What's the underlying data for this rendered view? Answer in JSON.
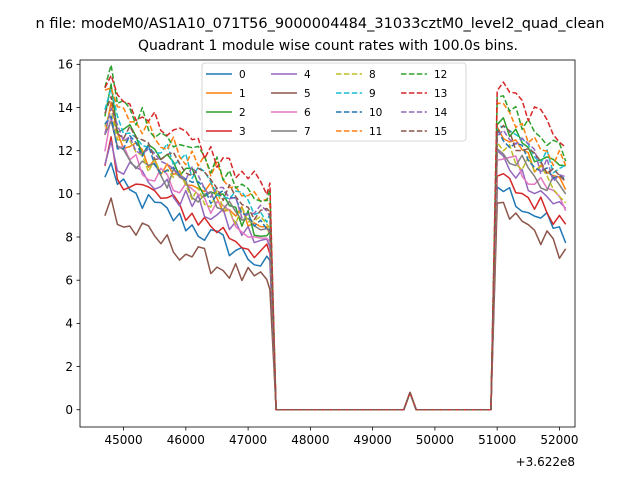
{
  "chart_data": {
    "type": "line",
    "suptitle": "n file: modeM0/AS1A10_071T56_9000004484_31033cztM0_level2_quad_clean",
    "title": "Quadrant 1 module wise count rates with 100.0s bins.",
    "xlabel": "",
    "ylabel": "",
    "x_offset_label": "+3.622e8",
    "xlim": [
      44300,
      52250
    ],
    "ylim": [
      -0.8,
      16.2
    ],
    "xticks": [
      45000,
      46000,
      47000,
      48000,
      49000,
      50000,
      51000,
      52000
    ],
    "yticks": [
      0,
      2,
      4,
      6,
      8,
      10,
      12,
      14,
      16
    ],
    "grid": false,
    "legend_position": "top-center",
    "segments": {
      "orbit1_x": [
        44700,
        44800,
        44900,
        45000,
        45100,
        45200,
        45300,
        45400,
        45500,
        45600,
        45700,
        45800,
        45900,
        46000,
        46100,
        46200,
        46300,
        46400,
        46500,
        46600,
        46700,
        46800,
        46900,
        47000,
        47100,
        47200,
        47300,
        47350
      ],
      "gap_x": [
        47450,
        47600,
        49500,
        49600,
        49700,
        50800
      ],
      "gap_y": [
        0,
        0,
        0,
        0.8,
        0,
        0
      ],
      "orbit2_x": [
        50900,
        51000,
        51100,
        51200,
        51300,
        51400,
        51500,
        51600,
        51700,
        51800,
        51900,
        52000,
        52100
      ]
    },
    "series": [
      {
        "name": "0",
        "color": "#1f77b4",
        "dash": "solid",
        "base1": 10.6,
        "end1": 6.5,
        "base2": 10.4,
        "end2": 8.0
      },
      {
        "name": "1",
        "color": "#ff7f0e",
        "dash": "solid",
        "base1": 12.8,
        "end1": 8.4,
        "base2": 12.8,
        "end2": 10.4
      },
      {
        "name": "2",
        "color": "#2ca02c",
        "dash": "solid",
        "base1": 13.6,
        "end1": 7.9,
        "base2": 13.4,
        "end2": 10.8
      },
      {
        "name": "3",
        "color": "#d62728",
        "dash": "solid",
        "base1": 11.2,
        "end1": 7.0,
        "base2": 10.8,
        "end2": 8.7
      },
      {
        "name": "4",
        "color": "#9467bd",
        "dash": "solid",
        "base1": 11.8,
        "end1": 7.5,
        "base2": 11.8,
        "end2": 9.2
      },
      {
        "name": "5",
        "color": "#8c564b",
        "dash": "solid",
        "base1": 8.9,
        "end1": 5.6,
        "base2": 9.4,
        "end2": 7.3
      },
      {
        "name": "6",
        "color": "#e377c2",
        "dash": "solid",
        "base1": 12.2,
        "end1": 7.8,
        "base2": 12.0,
        "end2": 9.6
      },
      {
        "name": "7",
        "color": "#7f7f7f",
        "dash": "solid",
        "base1": 12.4,
        "end1": 8.0,
        "base2": 12.3,
        "end2": 9.9
      },
      {
        "name": "8",
        "color": "#bcbd22",
        "dash": "dashed",
        "base1": 12.6,
        "end1": 8.1,
        "base2": 12.5,
        "end2": 10.0
      },
      {
        "name": "9",
        "color": "#17becf",
        "dash": "dashed",
        "base1": 13.8,
        "end1": 8.8,
        "base2": 13.6,
        "end2": 10.9
      },
      {
        "name": "10",
        "color": "#1f77b4",
        "dash": "dashed",
        "base1": 12.9,
        "end1": 8.4,
        "base2": 12.7,
        "end2": 10.2
      },
      {
        "name": "11",
        "color": "#ff7f0e",
        "dash": "dashed",
        "base1": 14.3,
        "end1": 9.3,
        "base2": 14.0,
        "end2": 11.3
      },
      {
        "name": "12",
        "color": "#2ca02c",
        "dash": "dashed",
        "base1": 14.6,
        "end1": 9.7,
        "base2": 14.4,
        "end2": 11.7
      },
      {
        "name": "13",
        "color": "#d62728",
        "dash": "dashed",
        "base1": 14.8,
        "end1": 10.1,
        "base2": 15.0,
        "end2": 12.5
      },
      {
        "name": "14",
        "color": "#9467bd",
        "dash": "dashed",
        "base1": 13.1,
        "end1": 8.6,
        "base2": 13.0,
        "end2": 10.5
      },
      {
        "name": "15",
        "color": "#8c564b",
        "dash": "dashed",
        "base1": 13.3,
        "end1": 8.7,
        "base2": 13.1,
        "end2": 10.7
      }
    ]
  }
}
